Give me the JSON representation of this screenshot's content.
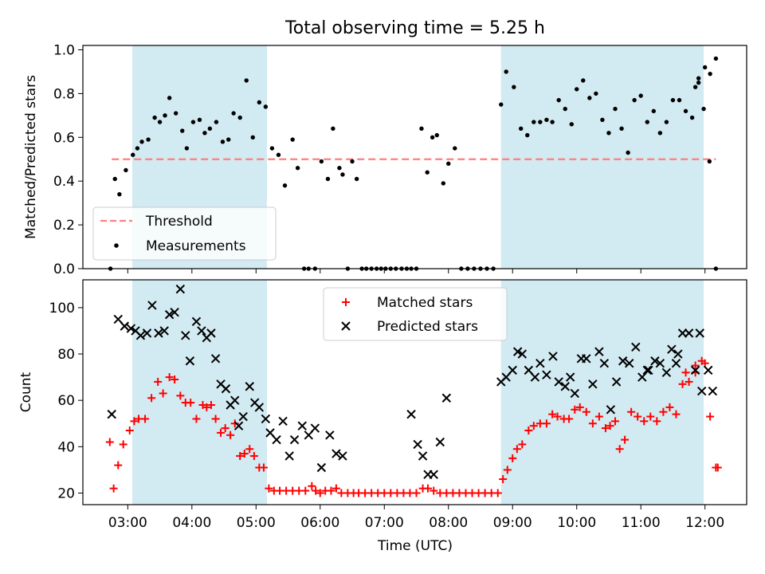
{
  "chart_data": [
    {
      "type": "scatter",
      "title": "Total observing time = 5.25 h",
      "ylabel": "Matched/Predicted stars",
      "xlabel": "",
      "xlim": [
        2.3,
        12.65
      ],
      "ylim": [
        0,
        1.02
      ],
      "yticks": [
        "0.0",
        "0.2",
        "0.4",
        "0.6",
        "0.8",
        "1.0"
      ],
      "grid": false,
      "shaded_intervals": [
        [
          3.07,
          5.17
        ],
        [
          8.82,
          11.98
        ]
      ],
      "shade_color": "#add8e6",
      "legend_position": "lower-left",
      "series": [
        {
          "name": "Threshold",
          "style": "dashed-line",
          "color": "#ff7f7f",
          "x": [
            2.75,
            12.17
          ],
          "y": [
            0.5,
            0.5
          ]
        },
        {
          "name": "Measurements",
          "style": "dot",
          "color": "#000000",
          "x": [
            2.73,
            2.8,
            2.87,
            2.97,
            3.08,
            3.15,
            3.22,
            3.32,
            3.42,
            3.5,
            3.58,
            3.65,
            3.75,
            3.85,
            3.92,
            4.02,
            4.12,
            4.2,
            4.28,
            4.38,
            4.48,
            4.57,
            4.65,
            4.75,
            4.85,
            4.95,
            5.05,
            5.15,
            5.25,
            5.35,
            5.45,
            5.57,
            5.65,
            5.75,
            5.82,
            5.92,
            6.02,
            6.12,
            6.2,
            6.3,
            6.35,
            6.43,
            6.5,
            6.57,
            6.65,
            6.72,
            6.8,
            6.88,
            6.95,
            7.02,
            7.1,
            7.18,
            7.27,
            7.35,
            7.42,
            7.5,
            7.58,
            7.67,
            7.75,
            7.82,
            7.92,
            8.0,
            8.1,
            8.2,
            8.3,
            8.4,
            8.5,
            8.6,
            8.7,
            8.82,
            8.9,
            9.02,
            9.13,
            9.23,
            9.33,
            9.43,
            9.53,
            9.62,
            9.72,
            9.82,
            9.92,
            10.0,
            10.1,
            10.2,
            10.3,
            10.4,
            10.5,
            10.6,
            10.7,
            10.8,
            10.9,
            11.0,
            11.1,
            11.2,
            11.3,
            11.4,
            11.5,
            11.6,
            11.7,
            11.8,
            11.9,
            12.0,
            12.08,
            12.17
          ],
          "y": [
            0.0,
            0.41,
            0.34,
            0.45,
            0.52,
            0.55,
            0.58,
            0.59,
            0.69,
            0.67,
            0.7,
            0.78,
            0.71,
            0.63,
            0.55,
            0.67,
            0.68,
            0.62,
            0.64,
            0.67,
            0.58,
            0.59,
            0.71,
            0.69,
            0.86,
            0.6,
            0.76,
            0.74,
            0.55,
            0.52,
            0.38,
            0.59,
            0.46,
            0.0,
            0.0,
            0.0,
            0.49,
            0.41,
            0.64,
            0.46,
            0.43,
            0.0,
            0.49,
            0.41,
            0.0,
            0.0,
            0.0,
            0.0,
            0.0,
            0.0,
            0.0,
            0.0,
            0.0,
            0.0,
            0.0,
            0.0,
            0.64,
            0.44,
            0.6,
            0.61,
            0.39,
            0.48,
            0.55,
            0.0,
            0.0,
            0.0,
            0.0,
            0.0,
            0.0,
            0.75,
            0.9,
            0.83,
            0.64,
            0.61,
            0.67,
            0.67,
            0.68,
            0.67,
            0.77,
            0.73,
            0.66,
            0.82,
            0.86,
            0.78,
            0.8,
            0.68,
            0.62,
            0.73,
            0.64,
            0.53,
            0.77,
            0.79,
            0.67,
            0.72,
            0.62,
            0.67,
            0.77,
            0.77,
            0.72,
            0.69,
            0.87,
            0.92,
            0.89,
            0.96
          ],
          "extra_points": [
            [
              11.9,
              0.85
            ],
            [
              11.98,
              0.73
            ],
            [
              12.07,
              0.49
            ],
            [
              12.17,
              0.0
            ],
            [
              11.85,
              0.83
            ]
          ]
        }
      ]
    },
    {
      "type": "scatter",
      "title": "",
      "ylabel": "Count",
      "xlabel": "Time (UTC)",
      "xlim": [
        2.3,
        12.65
      ],
      "ylim": [
        15,
        112
      ],
      "yticks": [
        "20",
        "40",
        "60",
        "80",
        "100"
      ],
      "xticks": [
        "03:00",
        "04:00",
        "05:00",
        "06:00",
        "07:00",
        "08:00",
        "09:00",
        "10:00",
        "11:00",
        "12:00"
      ],
      "xtick_values": [
        3,
        4,
        5,
        6,
        7,
        8,
        9,
        10,
        11,
        12
      ],
      "grid": false,
      "shaded_intervals": [
        [
          3.07,
          5.17
        ],
        [
          8.82,
          11.98
        ]
      ],
      "shade_color": "#add8e6",
      "legend_position": "upper-center",
      "series": [
        {
          "name": "Matched stars",
          "marker": "plus",
          "color": "#ff0000",
          "x": [
            2.72,
            2.78,
            2.85,
            2.93,
            3.03,
            3.1,
            3.17,
            3.27,
            3.37,
            3.47,
            3.55,
            3.65,
            3.73,
            3.82,
            3.9,
            3.98,
            4.07,
            4.17,
            4.23,
            4.3,
            4.37,
            4.45,
            4.52,
            4.6,
            4.67,
            4.75,
            4.82,
            4.9,
            4.97,
            5.05,
            5.12,
            5.2,
            5.28,
            5.37,
            5.47,
            5.57,
            5.67,
            5.77,
            5.87,
            5.93,
            6.0,
            6.08,
            6.17,
            6.25,
            6.33,
            6.43,
            6.52,
            6.6,
            6.7,
            6.8,
            6.9,
            7.0,
            7.1,
            7.2,
            7.3,
            7.4,
            7.5,
            7.6,
            7.68,
            7.77,
            7.87,
            7.97,
            8.07,
            8.17,
            8.27,
            8.37,
            8.47,
            8.57,
            8.67,
            8.77,
            8.85,
            8.92,
            9.0,
            9.07,
            9.15,
            9.25,
            9.33,
            9.43,
            9.53,
            9.62,
            9.7,
            9.8,
            9.88,
            9.97,
            10.05,
            10.15,
            10.25,
            10.35,
            10.45,
            10.52,
            10.6,
            10.67,
            10.75,
            10.85,
            10.95,
            11.05,
            11.15,
            11.25,
            11.35,
            11.45,
            11.55,
            11.65,
            11.75,
            11.85,
            11.95,
            12.0,
            12.08,
            12.17
          ],
          "y": [
            42,
            22,
            32,
            41,
            47,
            51,
            52,
            52,
            61,
            68,
            63,
            70,
            69,
            62,
            59,
            59,
            52,
            58,
            57,
            58,
            52,
            46,
            48,
            45,
            50,
            36,
            37,
            39,
            36,
            31,
            31,
            22,
            21,
            21,
            21,
            21,
            21,
            21,
            23,
            21,
            20,
            21,
            21,
            22,
            20,
            20,
            20,
            20,
            20,
            20,
            20,
            20,
            20,
            20,
            20,
            20,
            20,
            22,
            22,
            21,
            20,
            20,
            20,
            20,
            20,
            20,
            20,
            20,
            20,
            20,
            26,
            30,
            35,
            39,
            41,
            47,
            49,
            50,
            50,
            54,
            53,
            52,
            52,
            56,
            57,
            55,
            50,
            53,
            48,
            49,
            51,
            39,
            43,
            55,
            53,
            51,
            53,
            51,
            55,
            57,
            54,
            67,
            68,
            72,
            77,
            76,
            53,
            31
          ],
          "extra_points": [
            [
              12.2,
              31
            ],
            [
              11.85,
              75
            ],
            [
              11.7,
              72
            ]
          ]
        },
        {
          "name": "Predicted stars",
          "marker": "x",
          "color": "#000000",
          "x": [
            2.75,
            2.85,
            2.95,
            3.05,
            3.12,
            3.2,
            3.3,
            3.38,
            3.48,
            3.57,
            3.65,
            3.73,
            3.82,
            3.9,
            3.97,
            4.07,
            4.15,
            4.23,
            4.3,
            4.37,
            4.45,
            4.53,
            4.6,
            4.67,
            4.73,
            4.8,
            4.9,
            4.98,
            5.05,
            5.15,
            5.22,
            5.32,
            5.42,
            5.52,
            5.6,
            5.72,
            5.82,
            5.92,
            6.02,
            6.15,
            6.25,
            6.35,
            7.42,
            7.52,
            7.6,
            7.68,
            7.77,
            7.87,
            7.97,
            8.82,
            8.9,
            9.0,
            9.08,
            9.15,
            9.25,
            9.35,
            9.43,
            9.53,
            9.63,
            9.72,
            9.82,
            9.9,
            9.97,
            10.07,
            10.15,
            10.25,
            10.35,
            10.43,
            10.53,
            10.62,
            10.72,
            10.82,
            10.92,
            11.02,
            11.12,
            11.22,
            11.3,
            11.4,
            11.48,
            11.58,
            11.65,
            11.75,
            11.85,
            11.95,
            12.05,
            12.12
          ],
          "y": [
            54,
            95,
            92,
            91,
            90,
            88,
            89,
            101,
            89,
            90,
            97,
            98,
            108,
            88,
            77,
            94,
            90,
            87,
            89,
            78,
            67,
            65,
            58,
            60,
            49,
            53,
            66,
            59,
            57,
            52,
            46,
            43,
            51,
            36,
            43,
            49,
            45,
            48,
            31,
            45,
            37,
            36,
            54,
            41,
            36,
            28,
            28,
            42,
            61,
            68,
            70,
            73,
            81,
            80,
            73,
            70,
            76,
            71,
            79,
            68,
            66,
            70,
            63,
            78,
            78,
            67,
            81,
            76,
            56,
            68,
            77,
            76,
            83,
            70,
            73,
            77,
            76,
            72,
            82,
            80,
            89,
            89,
            73,
            64,
            73,
            64
          ],
          "extra_points": [
            [
              11.92,
              89
            ],
            [
              11.1,
              73
            ],
            [
              11.55,
              76
            ]
          ]
        }
      ]
    }
  ]
}
